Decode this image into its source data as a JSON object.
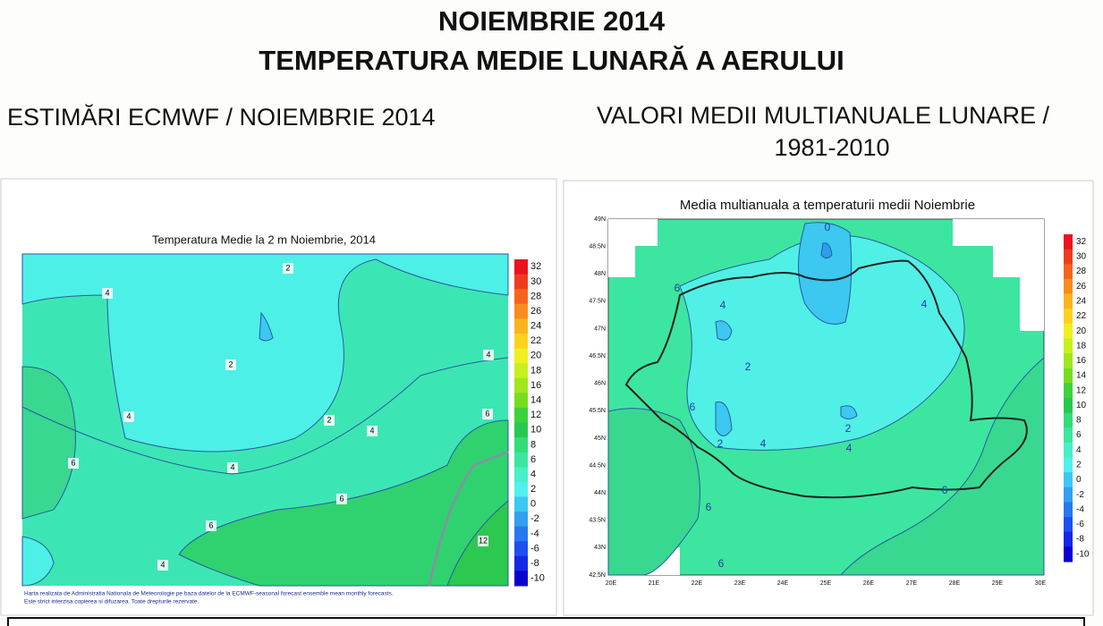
{
  "header": {
    "title": "NOIEMBRIE 2014",
    "subtitle": "TEMPERATURA MEDIE LUNARĂ A AERULUI"
  },
  "left": {
    "heading": "ESTIMĂRI ECMWF / NOIEMBRIE 2014",
    "map_title": "Temperatura Medie la 2 m Noiembrie, 2014",
    "contour_labels": [
      2,
      4,
      2,
      4,
      2,
      4,
      4,
      6,
      6,
      4,
      6,
      6,
      4,
      12
    ],
    "colorbar": {
      "labels": [
        32,
        30,
        28,
        26,
        24,
        22,
        20,
        18,
        16,
        14,
        12,
        10,
        8,
        6,
        4,
        2,
        0,
        -2,
        -4,
        -6,
        -8,
        -10
      ],
      "colors": [
        "#e8141e",
        "#f03c1e",
        "#f5641e",
        "#f88c1e",
        "#fab41e",
        "#fcd21e",
        "#f0f01e",
        "#c8f01e",
        "#a0e61e",
        "#78dc1e",
        "#3cd23c",
        "#28c850",
        "#32dc78",
        "#3ce6a0",
        "#46f0c8",
        "#50f0f0",
        "#3cc8f0",
        "#32a0f0",
        "#2878f0",
        "#1e50f0",
        "#1428e6",
        "#0a00d2"
      ]
    },
    "footnote": [
      "Harta realizata de Administratia Nationala de Meteorologie pe baza datelor de la ECMWF-seasonal forecast ensemble mean monthly forecasts.",
      "Este strict interzisa copierea si difuzarea. Toate drepturile rezervate."
    ]
  },
  "right": {
    "heading": [
      "VALORI MEDII MULTIANUALE LUNARE /",
      "1981-2010"
    ],
    "map_title": "Media multianuala a temperaturii medii Noiembrie",
    "lat_labels": [
      "49N",
      "48.5N",
      "48N",
      "47.5N",
      "47N",
      "46.5N",
      "46N",
      "45.5N",
      "45N",
      "44.5N",
      "44N",
      "43.5N",
      "43N",
      "42.5N"
    ],
    "lon_labels": [
      "20E",
      "21E",
      "22E",
      "23E",
      "24E",
      "25E",
      "26E",
      "27E",
      "28E",
      "29E",
      "30E"
    ],
    "contour_labels": [
      0,
      6,
      4,
      4,
      2,
      6,
      2,
      2,
      4,
      4,
      6,
      6,
      6
    ],
    "colorbar": {
      "labels": [
        32,
        30,
        28,
        26,
        24,
        22,
        20,
        18,
        16,
        14,
        12,
        10,
        8,
        6,
        4,
        2,
        0,
        -2,
        -4,
        -6,
        -8,
        -10
      ],
      "colors": [
        "#e8141e",
        "#f03c1e",
        "#f5641e",
        "#f88c1e",
        "#fab41e",
        "#fcd21e",
        "#f0f01e",
        "#c8f01e",
        "#a0e61e",
        "#78dc1e",
        "#3cd23c",
        "#28c850",
        "#32dc78",
        "#3ce6a0",
        "#46f0c8",
        "#50f0f0",
        "#3cc8f0",
        "#32a0f0",
        "#2878f0",
        "#1e50f0",
        "#1428e6",
        "#0a00d2"
      ]
    }
  }
}
